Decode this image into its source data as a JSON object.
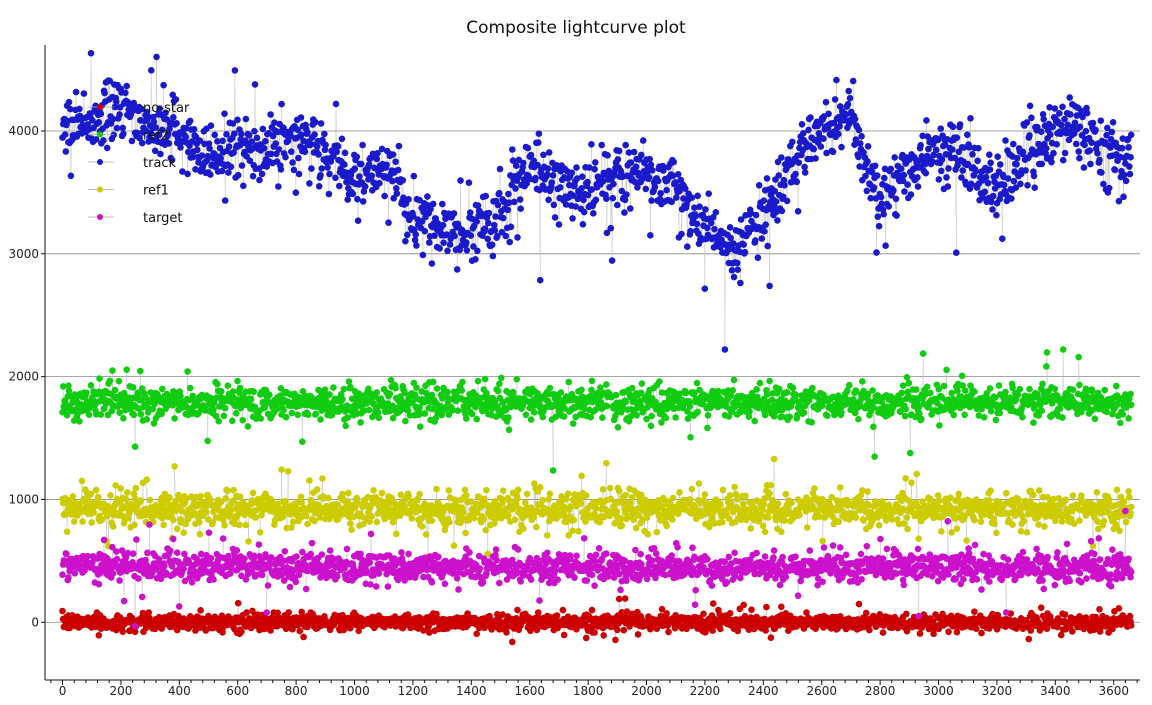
{
  "chart_data": {
    "type": "scatter",
    "title": "Composite lightcurve plot",
    "xlabel": "",
    "ylabel": "",
    "xlim": [
      -60,
      3690
    ],
    "ylim": [
      -470,
      4700
    ],
    "x_ticks": [
      0,
      200,
      400,
      600,
      800,
      1000,
      1200,
      1400,
      1600,
      1800,
      2000,
      2200,
      2400,
      2600,
      2800,
      3000,
      3200,
      3400,
      3600
    ],
    "y_ticks": [
      0,
      1000,
      2000,
      3000,
      4000
    ],
    "grid": "horizontal",
    "legend_position": "top-left",
    "connect_points": true,
    "n_points_per_series": 1650,
    "x_range": [
      0,
      3660
    ],
    "series": [
      {
        "name": "no-star",
        "color": "#cc0000",
        "shape": "noise",
        "mean": 0,
        "noise": 55,
        "profile": []
      },
      {
        "name": "ref2",
        "color": "#11cc11",
        "shape": "noise",
        "mean": 1790,
        "noise": 110,
        "profile": []
      },
      {
        "name": "track",
        "color": "#1a1acc",
        "shape": "profile",
        "mean": 0,
        "noise": 200,
        "profile": [
          [
            0,
            4000
          ],
          [
            100,
            4080
          ],
          [
            200,
            4220
          ],
          [
            300,
            4000
          ],
          [
            400,
            4000
          ],
          [
            500,
            3750
          ],
          [
            600,
            3900
          ],
          [
            700,
            3850
          ],
          [
            800,
            3950
          ],
          [
            900,
            3800
          ],
          [
            1000,
            3620
          ],
          [
            1100,
            3700
          ],
          [
            1200,
            3280
          ],
          [
            1300,
            3150
          ],
          [
            1400,
            3150
          ],
          [
            1500,
            3330
          ],
          [
            1600,
            3700
          ],
          [
            1700,
            3550
          ],
          [
            1800,
            3550
          ],
          [
            1900,
            3600
          ],
          [
            2000,
            3650
          ],
          [
            2100,
            3500
          ],
          [
            2200,
            3200
          ],
          [
            2300,
            3000
          ],
          [
            2400,
            3300
          ],
          [
            2500,
            3700
          ],
          [
            2600,
            4050
          ],
          [
            2700,
            4150
          ],
          [
            2800,
            3400
          ],
          [
            2900,
            3700
          ],
          [
            3000,
            3850
          ],
          [
            3100,
            3780
          ],
          [
            3200,
            3500
          ],
          [
            3300,
            3820
          ],
          [
            3400,
            4000
          ],
          [
            3500,
            4020
          ],
          [
            3600,
            3750
          ],
          [
            3660,
            3800
          ]
        ]
      },
      {
        "name": "ref1",
        "color": "#cccc00",
        "shape": "noise",
        "mean": 920,
        "noise": 110,
        "profile": []
      },
      {
        "name": "target",
        "color": "#cc11cc",
        "shape": "noise",
        "mean": 450,
        "noise": 95,
        "profile": []
      }
    ],
    "line_color": "#bbbbbb",
    "axis_color": "#111111",
    "grid_color": "#888888"
  }
}
